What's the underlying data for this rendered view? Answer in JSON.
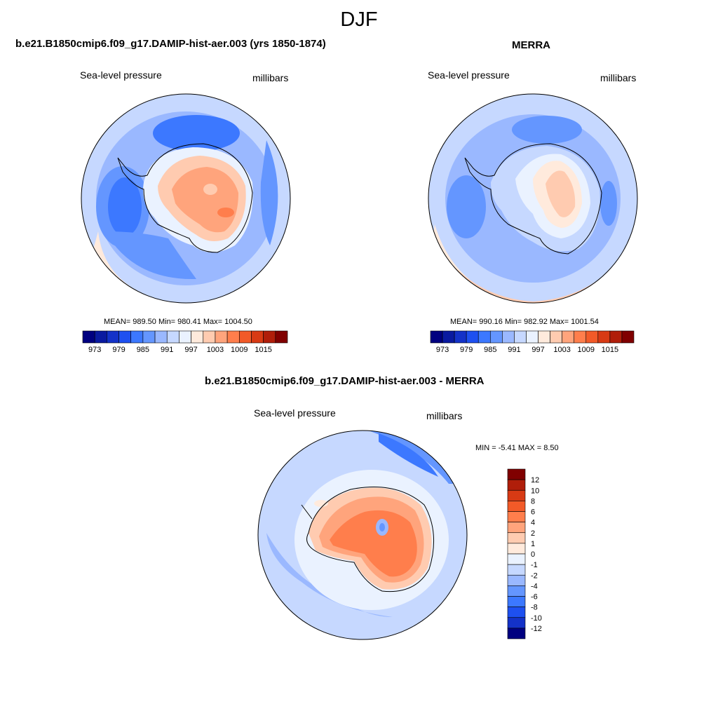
{
  "figure": {
    "title": "DJF"
  },
  "panels": [
    {
      "title": "b.e21.B1850cmip6.f09_g17.DAMIP-hist-aer.003 (yrs 1850-1874)",
      "variable": "Sea-level pressure",
      "units": "millibars",
      "stats": "MEAN= 989.50  Min= 980.41  Max= 1004.50"
    },
    {
      "title": "MERRA",
      "variable": "Sea-level pressure",
      "units": "millibars",
      "stats": "MEAN= 990.16  Min= 982.92  Max= 1001.54"
    },
    {
      "title": "b.e21.B1850cmip6.f09_g17.DAMIP-hist-aer.003 - MERRA",
      "variable": "Sea-level pressure",
      "units": "millibars",
      "stats": "MIN =  -5.41 MAX =   8.50"
    }
  ],
  "chart_data": [
    {
      "type": "heatmap",
      "title": "b.e21.B1850cmip6.f09_g17.DAMIP-hist-aer.003 (yrs 1850-1874)",
      "projection": "south polar stereographic",
      "variable": "Sea-level pressure",
      "units": "millibars",
      "mean": 989.5,
      "min": 980.41,
      "max": 1004.5,
      "colorbar": {
        "orientation": "horizontal",
        "levels": [
          970,
          973,
          976,
          979,
          982,
          985,
          988,
          991,
          994,
          997,
          1000,
          1003,
          1006,
          1009,
          1012,
          1015,
          1018
        ],
        "tick_labels": [
          "973",
          "979",
          "985",
          "991",
          "997",
          "1003",
          "1009",
          "1015"
        ],
        "colors": [
          "#000080",
          "#0a1aa0",
          "#1432c8",
          "#1e50f0",
          "#3c78ff",
          "#6496ff",
          "#9ab8ff",
          "#c6d8ff",
          "#eaf2ff",
          "#ffeadc",
          "#ffcbb0",
          "#ffa47c",
          "#ff7e4c",
          "#f25a28",
          "#d83a14",
          "#b01e0a",
          "#800000"
        ]
      }
    },
    {
      "type": "heatmap",
      "title": "MERRA",
      "projection": "south polar stereographic",
      "variable": "Sea-level pressure",
      "units": "millibars",
      "mean": 990.16,
      "min": 982.92,
      "max": 1001.54,
      "colorbar": {
        "orientation": "horizontal",
        "levels": [
          970,
          973,
          976,
          979,
          982,
          985,
          988,
          991,
          994,
          997,
          1000,
          1003,
          1006,
          1009,
          1012,
          1015,
          1018
        ],
        "tick_labels": [
          "973",
          "979",
          "985",
          "991",
          "997",
          "1003",
          "1009",
          "1015"
        ],
        "colors": [
          "#000080",
          "#0a1aa0",
          "#1432c8",
          "#1e50f0",
          "#3c78ff",
          "#6496ff",
          "#9ab8ff",
          "#c6d8ff",
          "#eaf2ff",
          "#ffeadc",
          "#ffcbb0",
          "#ffa47c",
          "#ff7e4c",
          "#f25a28",
          "#d83a14",
          "#b01e0a",
          "#800000"
        ]
      }
    },
    {
      "type": "heatmap",
      "title": "b.e21.B1850cmip6.f09_g17.DAMIP-hist-aer.003 - MERRA",
      "projection": "south polar stereographic",
      "variable": "Sea-level pressure",
      "units": "millibars",
      "min": -5.41,
      "max": 8.5,
      "colorbar": {
        "orientation": "vertical",
        "tick_labels": [
          "12",
          "10",
          "8",
          "6",
          "4",
          "2",
          "1",
          "0",
          "-1",
          "-2",
          "-4",
          "-6",
          "-8",
          "-10",
          "-12"
        ],
        "colors": [
          "#800000",
          "#b01e0a",
          "#d83a14",
          "#f25a28",
          "#ff7e4c",
          "#ffa47c",
          "#ffcbb0",
          "#ffeadc",
          "#eaf2ff",
          "#c6d8ff",
          "#9ab8ff",
          "#6496ff",
          "#3c78ff",
          "#1e50f0",
          "#1432c8",
          "#000080"
        ]
      }
    }
  ]
}
